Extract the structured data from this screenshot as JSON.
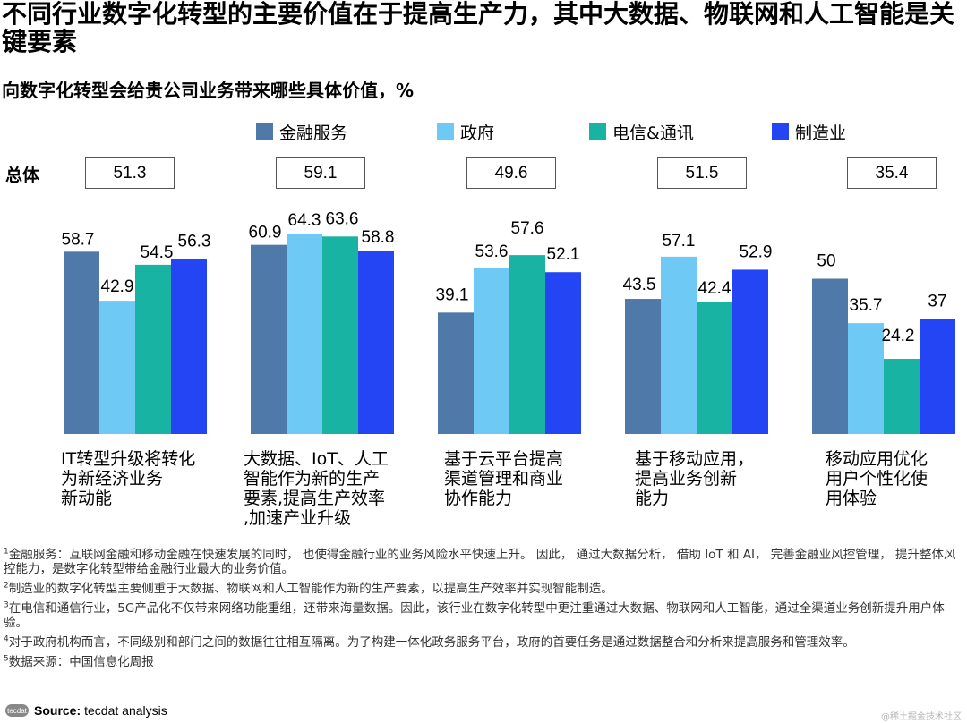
{
  "title": "不同行业数字化转型的主要价值在于提高生产力，其中大数据、物联网和人工智能是关键要素",
  "subtitle": "向数字化转型会给贵公司业务带来哪些具体价值，%",
  "total_label": "总体",
  "totals": [
    "51.3",
    "59.1",
    "49.6",
    "51.5",
    "35.4"
  ],
  "colors": {
    "finance": "#4e79a8",
    "government": "#6fc9f5",
    "telecom": "#18b3a3",
    "manufacturing": "#2445f3"
  },
  "chart_data": {
    "type": "bar",
    "title": "向数字化转型会给贵公司业务带来哪些具体价值，%",
    "xlabel": "",
    "ylabel": "%",
    "ylim": [
      0,
      70
    ],
    "grid": false,
    "legend_position": "top",
    "categories": [
      "IT转型升级将转化为新经济业务新动能",
      "大数据、IoT、人工智能作为新的生产要素,提高生产效率,加速产业升级",
      "基于云平台提高渠道管理和商业协作能力",
      "基于移动应用，提高业务创新能力",
      "移动应用优化用户个性化使用体验"
    ],
    "category_lines": [
      [
        "IT转型升级将转化",
        "为新经济业务",
        "新动能"
      ],
      [
        "大数据、IoT、人工",
        "智能作为新的生产",
        "要素,提高生产效率",
        ",加速产业升级"
      ],
      [
        "基于云平台提高",
        "渠道管理和商业",
        "协作能力"
      ],
      [
        "基于移动应用，",
        "提高业务创新",
        "能力"
      ],
      [
        "移动应用优化",
        "用户个性化使",
        "用体验"
      ]
    ],
    "series": [
      {
        "name": "金融服务",
        "values": [
          58.7,
          60.9,
          39.1,
          43.5,
          50
        ]
      },
      {
        "name": "政府",
        "values": [
          42.9,
          64.3,
          53.6,
          57.1,
          35.7
        ]
      },
      {
        "name": "电信&通讯",
        "values": [
          54.5,
          63.6,
          57.6,
          42.4,
          24.2
        ]
      },
      {
        "name": "制造业",
        "values": [
          56.3,
          58.8,
          52.1,
          52.9,
          37
        ]
      }
    ]
  },
  "footnotes": [
    {
      "num": "1",
      "text": "金融服务：互联网金融和移动金融在快速发展的同时， 也使得金融行业的业务风险水平快速上升。 因此， 通过大数据分析， 借助 IoT 和 AI， 完善金融业风控管理， 提升整体风控能力，是数字化转型带给金融行业最大的业务价值。"
    },
    {
      "num": "2",
      "text": "制造业的数字化转型主要侧重于大数据、物联网和人工智能作为新的生产要素，以提高生产效率并实现智能制造。"
    },
    {
      "num": "3",
      "text": "在电信和通信行业，5G产品化不仅带来网络功能重组，还带来海量数据。因此，该行业在数字化转型中更注重通过大数据、物联网和人工智能，通过全渠道业务创新提升用户体验。"
    },
    {
      "num": "4",
      "text": "对于政府机构而言，不同级别和部门之间的数据往往相互隔离。为了构建一体化政务服务平台，政府的首要任务是通过数据整合和分析来提高服务和管理效率。"
    },
    {
      "num": "5",
      "text": "数据来源：中国信息化周报"
    }
  ],
  "source": {
    "logo_text": "tecdat",
    "label": "Source:",
    "text": "tecdat analysis"
  },
  "watermark": "@稀土掘金技术社区"
}
